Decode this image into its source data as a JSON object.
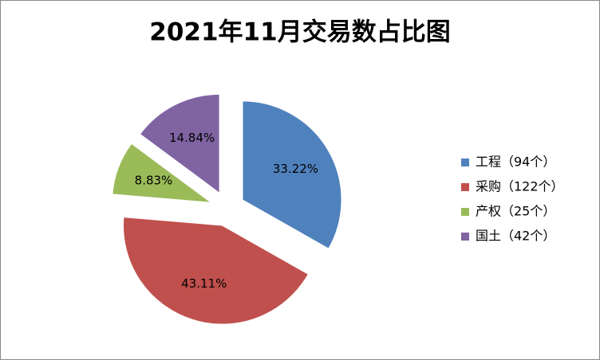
{
  "chart_data": {
    "type": "pie",
    "title": "2021年11月交易数占比图",
    "categories": [
      "工程（94个）",
      "采购（122个）",
      "产权（25个）",
      "国土（42个）"
    ],
    "values": [
      33.22,
      43.11,
      8.83,
      14.84
    ],
    "value_labels": [
      "33.22%",
      "43.11%",
      "8.83%",
      "14.84%"
    ],
    "colors": [
      "#4f81bd",
      "#c0504d",
      "#9bbb59",
      "#8064a2"
    ],
    "legend": "right"
  }
}
